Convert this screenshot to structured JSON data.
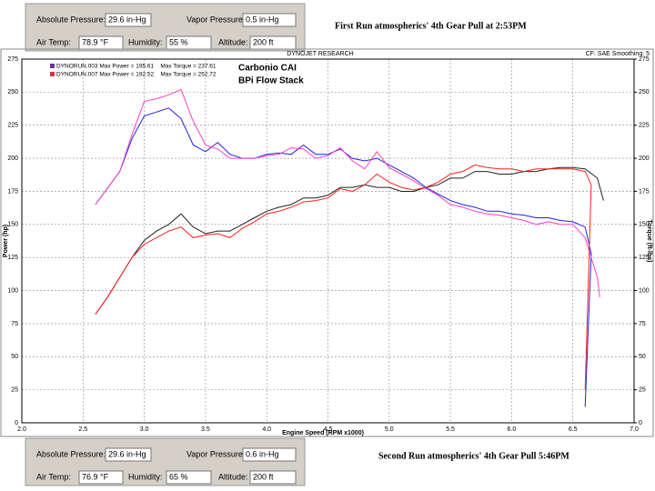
{
  "panels": [
    {
      "note": "First Run atmospherics' 4th Gear Pull at 2:53PM",
      "fields": [
        {
          "label": "Absolute Pressure:",
          "value": "29.6 in-Hg"
        },
        {
          "label": "Vapor Pressure:",
          "value": "0.5 in-Hg"
        },
        {
          "label": "Air Temp:",
          "value": "78.9 °F"
        },
        {
          "label": "Humidity:",
          "value": "55 %"
        },
        {
          "label": "Altitude:",
          "value": "200 ft"
        }
      ]
    },
    {
      "note": "Second Run atmospherics' 4th Gear Pull 5:46PM",
      "fields": [
        {
          "label": "Absolute Pressure:",
          "value": "29.6 in-Hg"
        },
        {
          "label": "Vapor Pressure:",
          "value": "0.6 in-Hg"
        },
        {
          "label": "Air Temp:",
          "value": "76.9 °F"
        },
        {
          "label": "Humidity:",
          "value": "65 %"
        },
        {
          "label": "Altitude:",
          "value": "200 ft"
        }
      ]
    }
  ],
  "chart_data": {
    "type": "line",
    "title": "DYNOJET RESEARCH",
    "subtitle": "CF: SAE  Smoothing: 5",
    "x_label": "Engine Speed (RPM x1000)",
    "y_label": "Power (hp)",
    "y2_label": "Torque (ft-lbs)",
    "annotations": [
      "Carbonio CAI",
      "BPi Flow Stack"
    ],
    "legend": [
      {
        "text": "DYNORUN.003 Max Power = 195.61    Max Torque = 237.61",
        "color": "#7030a0"
      },
      {
        "text": "DYNORUN.007 Max Power = 192.52    Max Torque = 252.72",
        "color": "#e03040"
      }
    ],
    "xlim": [
      2.0,
      7.0
    ],
    "xticks": [
      {
        "value": 2,
        "label": "2.0"
      },
      2.5,
      {
        "value": 3,
        "label": "3.0"
      },
      3.5,
      {
        "value": 4,
        "label": "4.0"
      },
      4.5,
      {
        "value": 5,
        "label": "5.0"
      },
      5.5,
      {
        "value": 6,
        "label": "6.0"
      },
      6.5,
      {
        "value": 7,
        "label": "7.0"
      }
    ],
    "ylim": [
      0,
      275
    ],
    "yticks": [
      0,
      25,
      50,
      75,
      100,
      125,
      150,
      175,
      200,
      225,
      250,
      275
    ],
    "y2lim": [
      0,
      275
    ],
    "y2ticks": [
      0,
      25,
      50,
      75,
      100,
      125,
      150,
      175,
      200,
      225,
      250,
      275
    ],
    "grid": true,
    "series": [
      {
        "color": "#2020e0",
        "axis": "y2",
        "x": [
          2.6,
          2.8,
          2.9,
          3.0,
          3.1,
          3.2,
          3.3,
          3.4,
          3.5,
          3.6,
          3.7,
          3.8,
          3.9,
          4.0,
          4.1,
          4.2,
          4.3,
          4.4,
          4.5,
          4.6,
          4.7,
          4.8,
          4.9,
          5.0,
          5.1,
          5.2,
          5.3,
          5.4,
          5.5,
          5.6,
          5.7,
          5.8,
          5.9,
          6.0,
          6.1,
          6.2,
          6.3,
          6.4,
          6.5,
          6.6,
          6.65,
          6.6
        ],
        "values": [
          165,
          190,
          215,
          232,
          235,
          238,
          230,
          210,
          205,
          212,
          203,
          200,
          200,
          203,
          204,
          203,
          210,
          203,
          203,
          207,
          200,
          198,
          200,
          195,
          190,
          185,
          178,
          173,
          168,
          165,
          163,
          160,
          160,
          158,
          157,
          155,
          155,
          153,
          152,
          148,
          128,
          12
        ]
      },
      {
        "color": "#ff40c0",
        "axis": "y2",
        "x": [
          2.6,
          2.8,
          2.9,
          3.0,
          3.1,
          3.2,
          3.3,
          3.4,
          3.5,
          3.6,
          3.7,
          3.8,
          3.9,
          4.0,
          4.1,
          4.2,
          4.3,
          4.4,
          4.5,
          4.6,
          4.7,
          4.8,
          4.9,
          5.0,
          5.1,
          5.2,
          5.3,
          5.4,
          5.5,
          5.6,
          5.7,
          5.8,
          5.9,
          6.0,
          6.1,
          6.2,
          6.3,
          6.4,
          6.5,
          6.6,
          6.7,
          6.72
        ],
        "values": [
          165,
          190,
          218,
          243,
          245,
          248,
          252,
          228,
          210,
          207,
          200,
          200,
          200,
          202,
          203,
          208,
          207,
          200,
          202,
          208,
          198,
          192,
          205,
          193,
          188,
          183,
          177,
          172,
          165,
          163,
          160,
          158,
          157,
          155,
          153,
          150,
          152,
          150,
          150,
          140,
          110,
          95
        ]
      },
      {
        "color": "#202020",
        "axis": "y",
        "x": [
          2.6,
          2.7,
          2.8,
          2.9,
          3.0,
          3.1,
          3.2,
          3.3,
          3.4,
          3.5,
          3.6,
          3.7,
          3.8,
          3.9,
          4.0,
          4.1,
          4.2,
          4.3,
          4.4,
          4.5,
          4.6,
          4.7,
          4.8,
          4.9,
          5.0,
          5.1,
          5.2,
          5.3,
          5.4,
          5.5,
          5.6,
          5.7,
          5.8,
          5.9,
          6.0,
          6.1,
          6.2,
          6.3,
          6.4,
          6.5,
          6.6,
          6.7,
          6.75
        ],
        "values": [
          82,
          95,
          110,
          125,
          138,
          145,
          150,
          158,
          148,
          143,
          145,
          145,
          150,
          155,
          160,
          163,
          165,
          170,
          170,
          172,
          178,
          178,
          180,
          178,
          178,
          175,
          175,
          178,
          180,
          185,
          185,
          190,
          190,
          188,
          188,
          190,
          190,
          192,
          193,
          193,
          192,
          185,
          168
        ]
      },
      {
        "color": "#ff2020",
        "axis": "y",
        "x": [
          2.6,
          2.7,
          2.8,
          2.9,
          3.0,
          3.1,
          3.2,
          3.3,
          3.4,
          3.5,
          3.6,
          3.7,
          3.8,
          3.9,
          4.0,
          4.1,
          4.2,
          4.3,
          4.4,
          4.5,
          4.6,
          4.7,
          4.8,
          4.9,
          5.0,
          5.1,
          5.2,
          5.3,
          5.4,
          5.5,
          5.6,
          5.7,
          5.8,
          5.9,
          6.0,
          6.1,
          6.2,
          6.3,
          6.4,
          6.5,
          6.6,
          6.65,
          6.6
        ],
        "values": [
          82,
          95,
          110,
          125,
          135,
          140,
          145,
          148,
          140,
          142,
          143,
          140,
          147,
          152,
          158,
          160,
          163,
          167,
          168,
          170,
          177,
          175,
          180,
          188,
          182,
          178,
          176,
          178,
          182,
          188,
          190,
          195,
          193,
          192,
          192,
          190,
          192,
          192,
          192,
          192,
          190,
          180,
          25
        ]
      }
    ]
  }
}
